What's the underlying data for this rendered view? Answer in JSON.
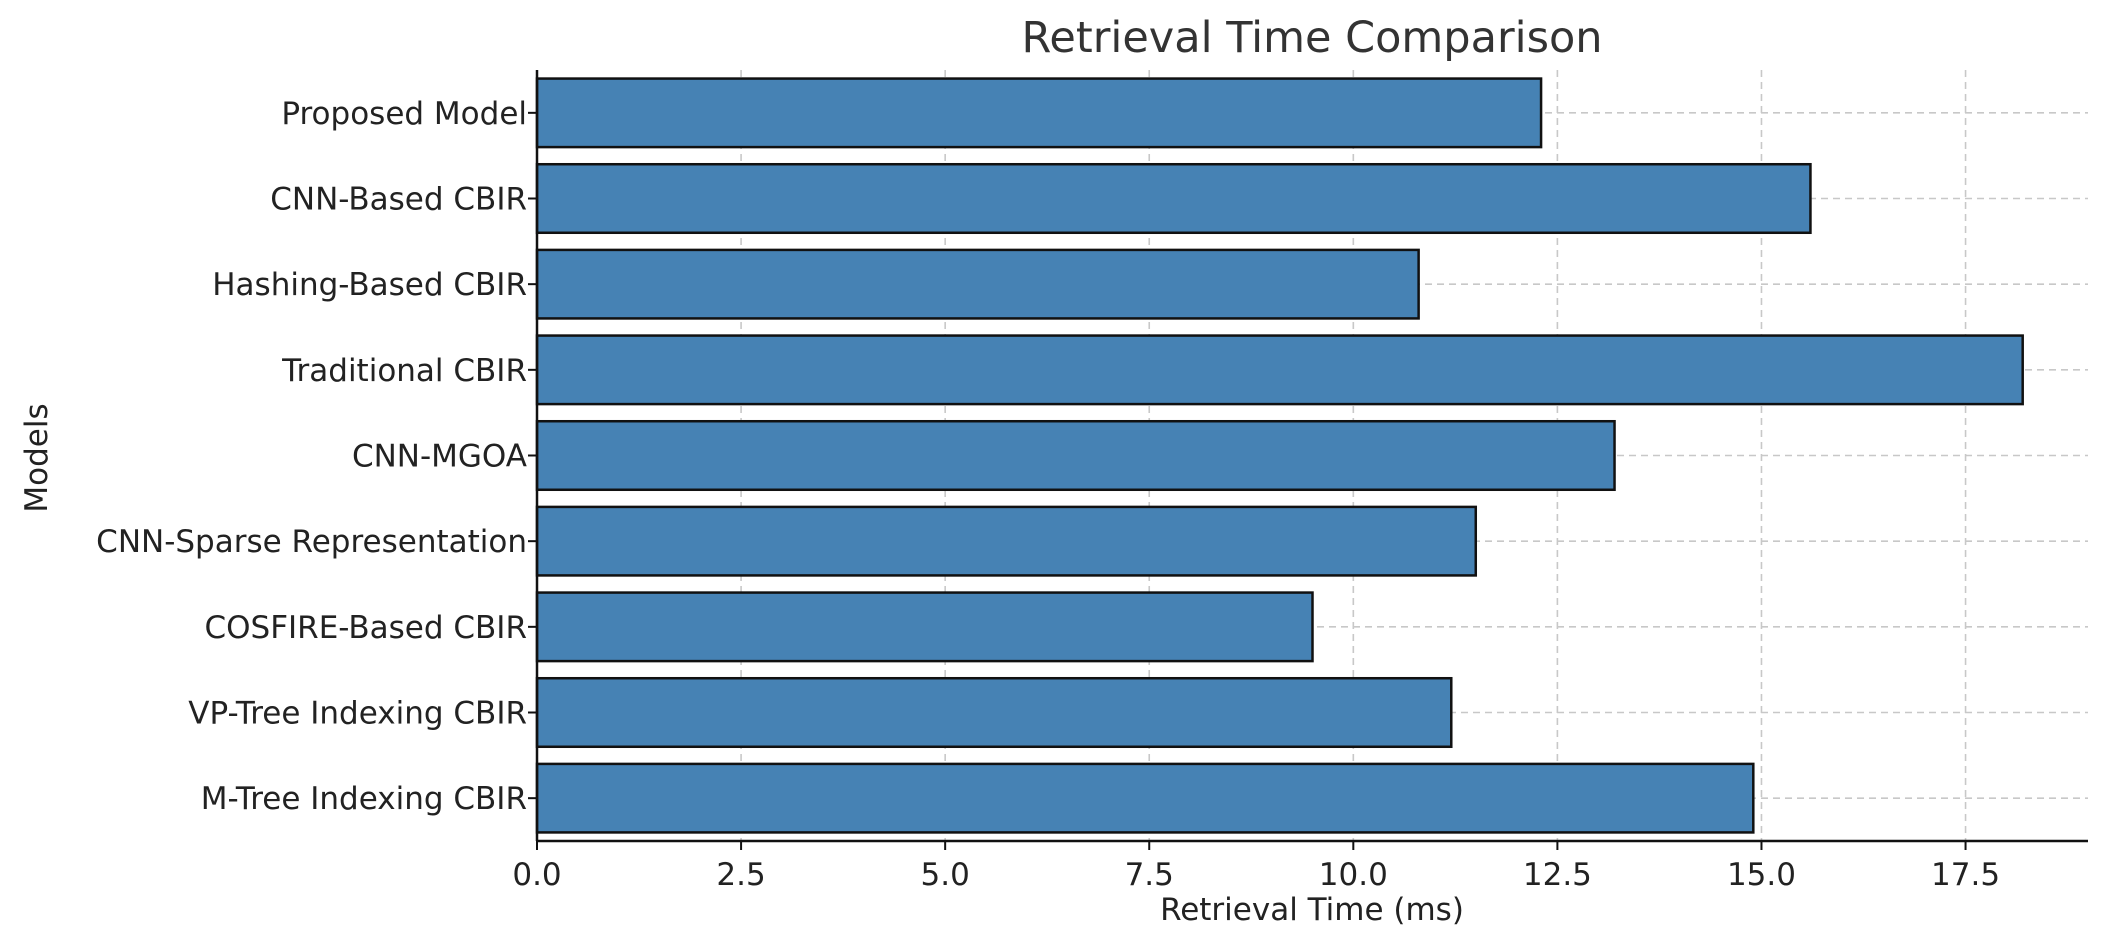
{
  "chart_data": {
    "type": "bar",
    "orientation": "horizontal",
    "title": "Retrieval Time Comparison",
    "xlabel": "Retrieval Time (ms)",
    "ylabel": "Models",
    "xlim": [
      0,
      19
    ],
    "x_ticks": [
      0,
      2.5,
      5,
      7.5,
      10,
      12.5,
      15,
      17.5
    ],
    "x_tick_labels": [
      "0.0",
      "2.5",
      "5.0",
      "7.5",
      "10.0",
      "12.5",
      "15.0",
      "17.5"
    ],
    "grid": true,
    "bar_color": "#4682b4",
    "categories": [
      "M-Tree Indexing CBIR",
      "VP-Tree Indexing CBIR",
      "COSFIRE-Based CBIR",
      "CNN-Sparse Representation",
      "CNN-MGOA",
      "Traditional CBIR",
      "Hashing-Based CBIR",
      "CNN-Based CBIR",
      "Proposed Model"
    ],
    "values": [
      14.9,
      11.2,
      9.5,
      11.5,
      13.2,
      18.2,
      10.8,
      15.6,
      12.3
    ]
  }
}
